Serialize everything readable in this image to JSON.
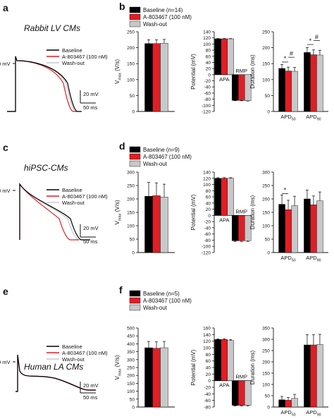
{
  "figure": {
    "colors": {
      "baseline": "#000000",
      "drug": "#e21d24",
      "washout": "#c8c8c8",
      "axis": "#111111"
    },
    "rows": [
      {
        "trace_panel": {
          "letter": "a",
          "title": "Rabbit LV CMs",
          "ylabel": "0 mV",
          "legend": [
            "Baseline",
            "A-803467 (100 nM)",
            "Wash-out"
          ],
          "scalebar_v": "20 mV",
          "scalebar_t": "50 ms"
        },
        "bar_panel": {
          "letter": "b",
          "legend": [
            "Baseline (n=14)",
            "A-803467 (100 nM)",
            "Wash-out"
          ]
        }
      },
      {
        "trace_panel": {
          "letter": "c",
          "title": "hiPSC-CMs",
          "ylabel": "0 mV",
          "legend": [
            "Baseline",
            "A-803467 (100 nM)",
            "Wash-out"
          ],
          "scalebar_v": "20 mV",
          "scalebar_t": "50 ms"
        },
        "bar_panel": {
          "letter": "d",
          "legend": [
            "Baseline (n=9)",
            "A-803467 (100 nM)",
            "Wash-out"
          ]
        }
      },
      {
        "trace_panel": {
          "letter": "e",
          "title": "Human LA CMs",
          "ylabel": "0 mV",
          "legend": [
            "Baseline",
            "A-803467 (100 nM)",
            "Wash-out"
          ],
          "scalebar_v": "20 mV",
          "scalebar_t": "50 ms"
        },
        "bar_panel": {
          "letter": "f",
          "legend": [
            "Baseline (n=5)",
            "A-803467 (100 nM)",
            "Wash-out"
          ]
        }
      }
    ]
  },
  "chart_data": [
    {
      "panel": "b-vmax",
      "type": "bar",
      "categories": [
        ""
      ],
      "ylabel": "Vmax (V/s)",
      "ylim": [
        0,
        250
      ],
      "yticks": [
        0,
        50,
        100,
        150,
        200,
        250
      ],
      "series": [
        {
          "name": "Baseline (n=14)",
          "values": [
            213
          ],
          "errors": [
            12
          ]
        },
        {
          "name": "A-803467 (100 nM)",
          "values": [
            213
          ],
          "errors": [
            12
          ]
        },
        {
          "name": "Wash-out",
          "values": [
            214
          ],
          "errors": [
            12
          ]
        }
      ]
    },
    {
      "panel": "b-potential",
      "type": "bar",
      "categories": [
        "APA",
        "RMP"
      ],
      "ylabel": "Potential (mV)",
      "ylim": [
        -120,
        140
      ],
      "yticks": [
        -120,
        -100,
        -80,
        -60,
        -40,
        -20,
        0,
        20,
        40,
        60,
        80,
        100,
        120,
        140
      ],
      "series": [
        {
          "name": "Baseline (n=14)",
          "values": [
            117,
            -84
          ],
          "errors": [
            1,
            1
          ]
        },
        {
          "name": "A-803467 (100 nM)",
          "values": [
            117,
            -84
          ],
          "errors": [
            1,
            1
          ]
        },
        {
          "name": "Wash-out",
          "values": [
            117,
            -85
          ],
          "errors": [
            1,
            1
          ]
        }
      ]
    },
    {
      "panel": "b-duration",
      "type": "bar",
      "categories": [
        "APD50",
        "APD90"
      ],
      "ylabel": "Duration (ms)",
      "ylim": [
        0,
        250
      ],
      "yticks": [
        0,
        50,
        100,
        150,
        200,
        250
      ],
      "series": [
        {
          "name": "Baseline (n=14)",
          "values": [
            135,
            185
          ],
          "errors": [
            12,
            15
          ]
        },
        {
          "name": "A-803467 (100 nM)",
          "values": [
            127,
            178
          ],
          "errors": [
            12,
            15
          ]
        },
        {
          "name": "Wash-out",
          "values": [
            126,
            177
          ],
          "errors": [
            12,
            15
          ]
        }
      ],
      "annotations": [
        {
          "category": "APD50",
          "from": 0,
          "to": 1,
          "text": "*",
          "y": 155
        },
        {
          "category": "APD50",
          "from": 1,
          "to": 2,
          "text": "#",
          "y": 170
        },
        {
          "category": "APD90",
          "from": 0,
          "to": 1,
          "text": "*",
          "y": 210
        },
        {
          "category": "APD90",
          "from": 1,
          "to": 2,
          "text": "#",
          "y": 222
        }
      ]
    },
    {
      "panel": "d-vmax",
      "type": "bar",
      "categories": [
        ""
      ],
      "ylabel": "Vmax (V/s)",
      "ylim": [
        0,
        300
      ],
      "yticks": [
        0,
        50,
        100,
        150,
        200,
        250,
        300
      ],
      "series": [
        {
          "name": "Baseline (n=9)",
          "values": [
            210
          ],
          "errors": [
            52
          ]
        },
        {
          "name": "A-803467 (100 nM)",
          "values": [
            212
          ],
          "errors": [
            48
          ]
        },
        {
          "name": "Wash-out",
          "values": [
            207
          ],
          "errors": [
            48
          ]
        }
      ]
    },
    {
      "panel": "d-potential",
      "type": "bar",
      "categories": [
        "APA",
        "RMP"
      ],
      "ylabel": "Potential (mV)",
      "ylim": [
        -120,
        140
      ],
      "yticks": [
        -120,
        -100,
        -80,
        -60,
        -40,
        -20,
        0,
        20,
        40,
        60,
        80,
        100,
        120,
        140
      ],
      "series": [
        {
          "name": "Baseline (n=9)",
          "values": [
            120,
            -82
          ],
          "errors": [
            2,
            2
          ]
        },
        {
          "name": "A-803467 (100 nM)",
          "values": [
            120,
            -82
          ],
          "errors": [
            2,
            2
          ]
        },
        {
          "name": "Wash-out",
          "values": [
            120,
            -82
          ],
          "errors": [
            2,
            2
          ]
        }
      ]
    },
    {
      "panel": "d-duration",
      "type": "bar",
      "categories": [
        "APD50",
        "APD90"
      ],
      "ylabel": "Duration (ms)",
      "ylim": [
        0,
        300
      ],
      "yticks": [
        0,
        50,
        100,
        150,
        200,
        250,
        300
      ],
      "series": [
        {
          "name": "Baseline (n=9)",
          "values": [
            180,
            200
          ],
          "errors": [
            35,
            33
          ]
        },
        {
          "name": "A-803467 (100 nM)",
          "values": [
            160,
            178
          ],
          "errors": [
            35,
            33
          ]
        },
        {
          "name": "Wash-out",
          "values": [
            175,
            193
          ],
          "errors": [
            35,
            33
          ]
        }
      ],
      "annotations": [
        {
          "category": "APD50",
          "from": 0,
          "to": 1,
          "text": "*",
          "y": 220
        }
      ]
    },
    {
      "panel": "f-vmax",
      "type": "bar",
      "categories": [
        ""
      ],
      "ylabel": "Vmax (V/s)",
      "ylim": [
        0,
        500
      ],
      "yticks": [
        0,
        50,
        100,
        150,
        200,
        250,
        300,
        350,
        400,
        450,
        500
      ],
      "series": [
        {
          "name": "Baseline (n=5)",
          "values": [
            375
          ],
          "errors": [
            40
          ]
        },
        {
          "name": "A-803467 (100 nM)",
          "values": [
            372
          ],
          "errors": [
            40
          ]
        },
        {
          "name": "Wash-out",
          "values": [
            375
          ],
          "errors": [
            40
          ]
        }
      ]
    },
    {
      "panel": "f-potential",
      "type": "bar",
      "categories": [
        "APA",
        "RMP"
      ],
      "ylabel": "Potential (mV)",
      "ylim": [
        -80,
        160
      ],
      "yticks": [
        -80,
        -60,
        -40,
        -20,
        0,
        20,
        40,
        60,
        80,
        100,
        120,
        140,
        160
      ],
      "series": [
        {
          "name": "Baseline (n=5)",
          "values": [
            125,
            -75
          ],
          "errors": [
            2,
            2
          ]
        },
        {
          "name": "A-803467 (100 nM)",
          "values": [
            125,
            -75
          ],
          "errors": [
            2,
            2
          ]
        },
        {
          "name": "Wash-out",
          "values": [
            122,
            -75
          ],
          "errors": [
            3,
            2
          ]
        }
      ]
    },
    {
      "panel": "f-duration",
      "type": "bar",
      "categories": [
        "APD50",
        "APD90"
      ],
      "ylabel": "Duration (ms)",
      "ylim": [
        0,
        350
      ],
      "yticks": [
        0,
        50,
        100,
        150,
        200,
        250,
        300,
        350
      ],
      "series": [
        {
          "name": "Baseline (n=5)",
          "values": [
            32,
            275
          ],
          "errors": [
            15,
            45
          ]
        },
        {
          "name": "A-803467 (100 nM)",
          "values": [
            30,
            275
          ],
          "errors": [
            12,
            45
          ]
        },
        {
          "name": "Wash-out",
          "values": [
            38,
            277
          ],
          "errors": [
            18,
            45
          ]
        }
      ]
    }
  ]
}
